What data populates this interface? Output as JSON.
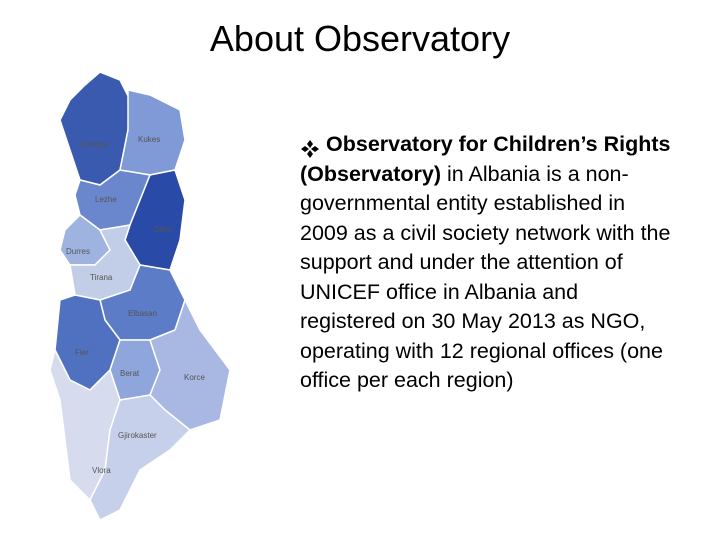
{
  "header": {
    "title": "About Observatory"
  },
  "map": {
    "regions": [
      {
        "label": "Shkoder"
      },
      {
        "label": "Kukes"
      },
      {
        "label": "Lezhe"
      },
      {
        "label": "Diber"
      },
      {
        "label": "Durres"
      },
      {
        "label": "Tirana"
      },
      {
        "label": "Elbasan"
      },
      {
        "label": "Fier"
      },
      {
        "label": "Berat"
      },
      {
        "label": "Korce"
      },
      {
        "label": "Vlora"
      },
      {
        "label": "Gjirokaster"
      }
    ]
  },
  "body": {
    "bold": "Observatory for Children’s Rights (Observatory)",
    "text": " in Albania is a non-governmental entity established in 2009 as a civil society network with the support and under the attention of UNICEF office in Albania and registered on 30 May 2013 as NGO, operating with 12 regional offices (one office per each region)"
  }
}
